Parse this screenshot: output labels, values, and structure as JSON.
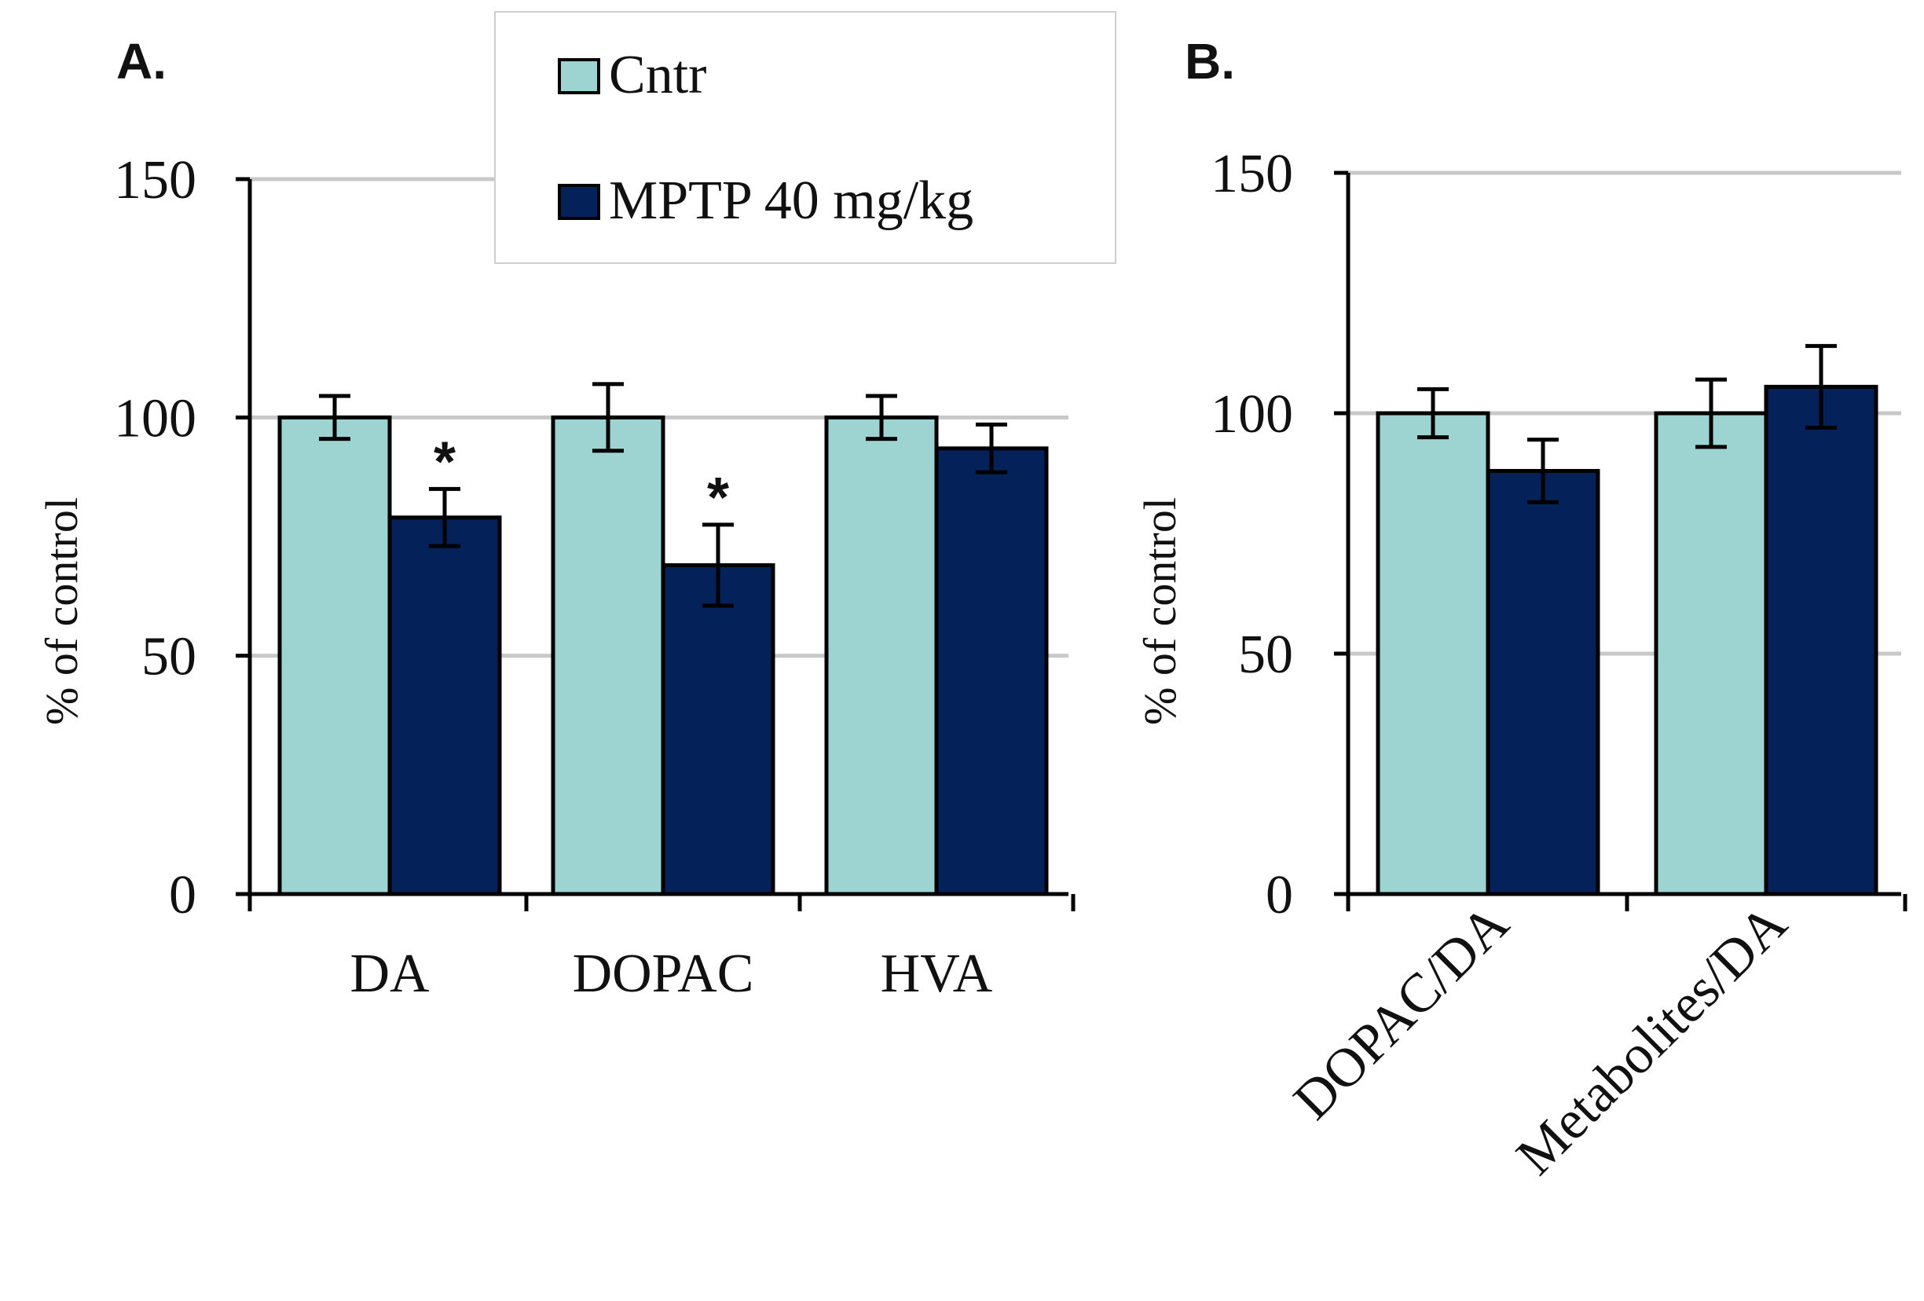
{
  "figure": {
    "legend": {
      "entries": [
        {
          "label": "Cntr",
          "color": "#9dd3d1"
        },
        {
          "label": "MPTP 40 mg/kg",
          "color": "#04215a"
        }
      ]
    }
  },
  "chart_data": [
    {
      "panel": "A.",
      "type": "bar",
      "ylabel": "% of control",
      "xlabel": "",
      "ylim": [
        0,
        150
      ],
      "yticks": [
        "0",
        "50",
        "100",
        "150"
      ],
      "gridlines": [
        50,
        100,
        150
      ],
      "categories": [
        "DA",
        "DOPAC",
        "HVA"
      ],
      "series": [
        {
          "name": "Cntr",
          "color": "#9dd3d1",
          "values": [
            100,
            100,
            100
          ],
          "errors": [
            4.5,
            7,
            4.5
          ]
        },
        {
          "name": "MPTP 40 mg/kg",
          "color": "#04215a",
          "values": [
            79,
            69,
            93.5
          ],
          "errors": [
            6,
            8.5,
            5
          ]
        }
      ],
      "annotations": [
        {
          "category": "DA",
          "series": 1,
          "text": "*"
        },
        {
          "category": "DOPAC",
          "series": 1,
          "text": "*"
        }
      ]
    },
    {
      "panel": "B.",
      "type": "bar",
      "ylabel": "% of control",
      "xlabel": "",
      "ylim": [
        0,
        150
      ],
      "yticks": [
        "0",
        "50",
        "100",
        "150"
      ],
      "gridlines": [
        50,
        100,
        150
      ],
      "categories": [
        "DOPAC/DA",
        "Metabolites/DA"
      ],
      "series": [
        {
          "name": "Cntr",
          "color": "#9dd3d1",
          "values": [
            100,
            100
          ],
          "errors": [
            5,
            7
          ]
        },
        {
          "name": "MPTP 40 mg/kg",
          "color": "#04215a",
          "values": [
            88,
            105.5
          ],
          "errors": [
            6.5,
            8.5
          ]
        }
      ],
      "annotations": []
    }
  ]
}
